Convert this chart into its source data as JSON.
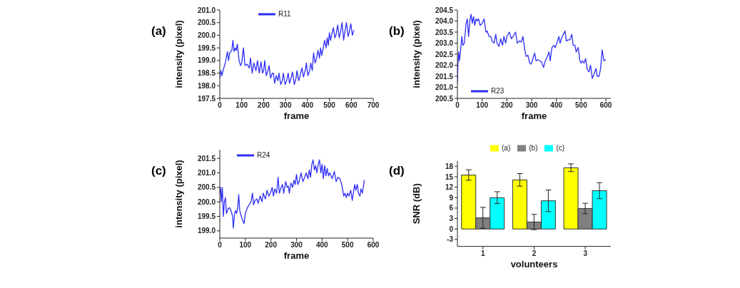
{
  "chart_data": [
    {
      "type": "line",
      "title": "(a)",
      "xlabel": "frame",
      "ylabel": "intensity (pixel)",
      "legend": "top",
      "xlim": [
        0,
        700
      ],
      "xticks": [
        0,
        100,
        200,
        300,
        400,
        500,
        600,
        700
      ],
      "ylim": [
        197.5,
        201
      ],
      "yticks": [
        {
          "value": 197.5,
          "label": "197.5"
        },
        {
          "value": 198,
          "label": "198.0"
        },
        {
          "value": 198.5,
          "label": "198.5"
        },
        {
          "value": 199,
          "label": "199.0"
        },
        {
          "value": 199.5,
          "label": "199.5"
        },
        {
          "value": 200,
          "label": "200.0"
        },
        {
          "value": 200.5,
          "label": "200.5"
        },
        {
          "value": 201,
          "label": "201.0"
        }
      ],
      "x": [
        0,
        5,
        10,
        15,
        25,
        35,
        40,
        45,
        55,
        60,
        65,
        70,
        75,
        80,
        88,
        95,
        100,
        108,
        115,
        125,
        135,
        140,
        148,
        155,
        165,
        172,
        180,
        188,
        195,
        200,
        205,
        212,
        220,
        225,
        232,
        240,
        245,
        250,
        258,
        265,
        270,
        278,
        285,
        290,
        298,
        305,
        312,
        318,
        325,
        332,
        340,
        348,
        352,
        360,
        368,
        375,
        382,
        390,
        395,
        402,
        410,
        415,
        422,
        428,
        435,
        442,
        448,
        455,
        460,
        465,
        470,
        478,
        485,
        490,
        495,
        500,
        505,
        510,
        518,
        525,
        530,
        538,
        545,
        550,
        558,
        565,
        570,
        578,
        585,
        590,
        598,
        605,
        612
      ],
      "series": [
        {
          "name": "R11",
          "color": "#2e2ef5",
          "values": [
            198.3,
            198.6,
            198.4,
            198.6,
            198.9,
            199.35,
            199.0,
            199.3,
            199.4,
            199.8,
            199.35,
            199.5,
            199.4,
            199.65,
            199.0,
            198.8,
            198.9,
            199.5,
            198.8,
            198.85,
            198.7,
            199.1,
            198.5,
            198.9,
            198.6,
            199.0,
            198.5,
            198.95,
            198.5,
            198.6,
            199.0,
            198.4,
            198.6,
            198.8,
            198.3,
            198.5,
            198.5,
            198.1,
            198.4,
            198.2,
            198.5,
            198.05,
            198.2,
            198.5,
            198.05,
            198.2,
            198.5,
            198.1,
            198.3,
            198.55,
            198.05,
            198.3,
            198.6,
            198.2,
            198.45,
            198.7,
            198.35,
            198.6,
            198.9,
            198.4,
            198.6,
            198.9,
            198.6,
            199.3,
            198.9,
            199.1,
            199.4,
            199.1,
            199.5,
            199.2,
            199.4,
            199.8,
            199.5,
            199.9,
            199.6,
            200.1,
            199.8,
            200.0,
            200.3,
            199.9,
            200.0,
            200.4,
            199.9,
            200.1,
            200.5,
            199.8,
            200.1,
            200.5,
            199.95,
            200.1,
            200.45,
            200.0,
            200.2
          ]
        }
      ]
    },
    {
      "type": "line",
      "title": "(b)",
      "xlabel": "frame",
      "ylabel": "intensity (pixel)",
      "legend": "left",
      "xlim": [
        0,
        620
      ],
      "xticks": [
        0,
        100,
        200,
        300,
        400,
        500,
        600
      ],
      "ylim": [
        200.5,
        204.5
      ],
      "yticks": [
        {
          "value": 200.5,
          "label": "200.5"
        },
        {
          "value": 201,
          "label": "201.0"
        },
        {
          "value": 201.5,
          "label": "201.5"
        },
        {
          "value": 202,
          "label": "202.0"
        },
        {
          "value": 202.5,
          "label": "202.5"
        },
        {
          "value": 203,
          "label": "203.0"
        },
        {
          "value": 203.5,
          "label": "203.5"
        },
        {
          "value": 204,
          "label": "204.0"
        },
        {
          "value": 204.5,
          "label": "204.5"
        }
      ],
      "x": [
        0,
        2,
        5,
        8,
        12,
        18,
        22,
        28,
        35,
        40,
        45,
        50,
        55,
        60,
        65,
        70,
        75,
        80,
        85,
        92,
        100,
        108,
        115,
        120,
        128,
        135,
        140,
        148,
        155,
        160,
        168,
        175,
        182,
        188,
        195,
        200,
        210,
        218,
        225,
        235,
        242,
        250,
        258,
        265,
        272,
        278,
        285,
        292,
        298,
        305,
        312,
        318,
        325,
        332,
        340,
        348,
        355,
        362,
        370,
        375,
        382,
        390,
        395,
        402,
        410,
        415,
        420,
        428,
        435,
        440,
        448,
        455,
        462,
        468,
        475,
        480,
        488,
        495,
        500,
        505,
        512,
        518,
        525,
        532,
        538,
        545,
        552,
        560,
        565,
        572,
        578,
        585,
        592,
        600
      ],
      "series": [
        {
          "name": "R23",
          "color": "#2e2ef5",
          "values": [
            201.2,
            202.0,
            202.6,
            202.2,
            202.6,
            203.3,
            202.9,
            203.0,
            203.9,
            204.1,
            203.3,
            204.0,
            204.3,
            203.9,
            204.2,
            203.8,
            204.1,
            204.0,
            204.1,
            203.8,
            203.9,
            204.1,
            203.5,
            203.55,
            203.3,
            203.3,
            203.1,
            203.0,
            203.4,
            203.0,
            202.85,
            203.2,
            202.9,
            203.3,
            203.0,
            203.3,
            203.5,
            203.2,
            203.3,
            203.5,
            203.0,
            203.1,
            203.05,
            203.3,
            202.7,
            202.4,
            202.45,
            202.1,
            202.05,
            202.3,
            202.55,
            202.2,
            202.25,
            202.2,
            202.15,
            201.9,
            202.2,
            202.35,
            202.6,
            202.2,
            202.8,
            202.9,
            202.8,
            203.0,
            203.3,
            203.0,
            203.2,
            203.4,
            203.55,
            203.1,
            203.15,
            203.15,
            203.4,
            202.9,
            202.9,
            202.6,
            202.8,
            202.2,
            202.1,
            202.2,
            202.1,
            202.3,
            201.8,
            201.7,
            202.0,
            201.4,
            201.6,
            201.85,
            201.5,
            201.5,
            201.8,
            202.7,
            202.2,
            202.25
          ]
        }
      ]
    },
    {
      "type": "line",
      "title": "(c)",
      "xlabel": "frame",
      "ylabel": "intensity (pixel)",
      "legend": "top left",
      "xlim": [
        0,
        600
      ],
      "xticks": [
        0,
        100,
        200,
        300,
        400,
        500,
        600
      ],
      "ylim": [
        198.75,
        201.8
      ],
      "yticks": [
        {
          "value": 199,
          "label": "199.0"
        },
        {
          "value": 199.5,
          "label": "199.5"
        },
        {
          "value": 200,
          "label": "200.0"
        },
        {
          "value": 200.5,
          "label": "200.5"
        },
        {
          "value": 201,
          "label": "201.0"
        },
        {
          "value": 201.5,
          "label": "201.5"
        }
      ],
      "x": [
        0,
        3,
        6,
        10,
        14,
        18,
        22,
        26,
        32,
        38,
        44,
        50,
        53,
        58,
        62,
        66,
        70,
        74,
        78,
        84,
        90,
        95,
        100,
        108,
        115,
        122,
        128,
        132,
        138,
        145,
        150,
        158,
        165,
        170,
        178,
        185,
        192,
        198,
        205,
        210,
        215,
        222,
        228,
        233,
        240,
        245,
        250,
        258,
        263,
        268,
        272,
        278,
        285,
        290,
        295,
        300,
        305,
        310,
        318,
        325,
        330,
        338,
        345,
        350,
        355,
        360,
        365,
        370,
        375,
        380,
        385,
        390,
        395,
        400,
        405,
        410,
        415,
        420,
        425,
        430,
        440,
        448,
        455,
        462,
        470,
        478,
        485,
        490,
        495,
        500,
        505,
        512,
        518,
        522,
        528,
        532,
        538,
        542,
        548,
        552,
        558,
        565
      ],
      "series": [
        {
          "name": "R24",
          "color": "#2e2ef5",
          "values": [
            200.3,
            200.5,
            200.0,
            200.5,
            199.5,
            200.0,
            200.15,
            199.6,
            199.75,
            199.8,
            199.7,
            199.5,
            199.1,
            199.6,
            199.7,
            199.6,
            199.8,
            200.25,
            199.7,
            199.5,
            199.35,
            199.25,
            199.6,
            199.8,
            199.9,
            200.0,
            200.3,
            199.9,
            200.05,
            200.1,
            199.95,
            200.2,
            200.0,
            200.3,
            200.1,
            200.4,
            200.2,
            200.3,
            200.5,
            200.2,
            200.45,
            200.3,
            200.85,
            200.3,
            200.5,
            200.6,
            200.3,
            200.7,
            200.5,
            200.55,
            200.3,
            200.65,
            200.5,
            200.75,
            200.6,
            200.95,
            200.6,
            200.7,
            201.0,
            200.7,
            200.8,
            201.0,
            200.8,
            201.1,
            200.85,
            201.3,
            201.45,
            201.1,
            201.25,
            201.0,
            201.3,
            201.45,
            201.0,
            201.3,
            200.8,
            201.25,
            200.9,
            201.15,
            200.9,
            201.0,
            200.8,
            201.05,
            200.7,
            200.85,
            200.8,
            200.55,
            200.2,
            200.3,
            200.15,
            200.3,
            200.2,
            200.4,
            200.05,
            200.3,
            200.6,
            200.4,
            200.6,
            200.3,
            200.2,
            200.45,
            200.3,
            200.75
          ]
        }
      ]
    },
    {
      "type": "bar",
      "title": "(d)",
      "xlabel": "volunteers",
      "ylabel": "SNR (dB)",
      "legend": "top right",
      "categories": [
        "1",
        "2",
        "3"
      ],
      "ylim": [
        -5,
        19.5
      ],
      "yticks": [
        -3,
        0,
        3,
        6,
        9,
        12,
        15,
        18
      ],
      "series": [
        {
          "name": "(a)",
          "color": "#ffff00",
          "values": [
            15.5,
            14.1,
            17.6
          ],
          "errors": [
            1.5,
            1.8,
            1.1
          ]
        },
        {
          "name": "(b)",
          "color": "#808080",
          "values": [
            3.2,
            2.0,
            5.9
          ],
          "errors": [
            3.0,
            2.2,
            1.5
          ]
        },
        {
          "name": "(c)",
          "color": "#00ffff",
          "values": [
            9.0,
            8.1,
            11.0
          ],
          "errors": [
            1.7,
            3.1,
            2.3
          ]
        }
      ]
    }
  ]
}
